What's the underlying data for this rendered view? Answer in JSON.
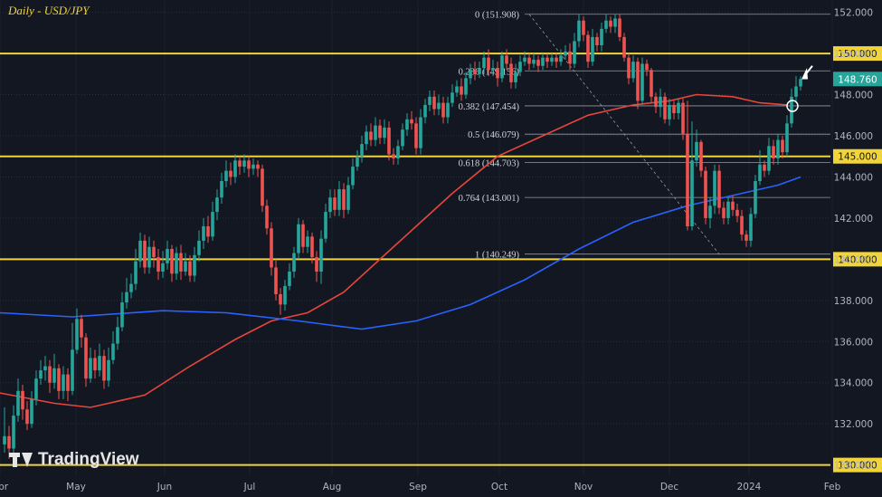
{
  "title": "Daily - USD/JPY",
  "brand": "TradingView",
  "chart_data": {
    "type": "candlestick",
    "y_axis": {
      "min": 129.5,
      "max": 152.6,
      "ticks": [
        130.0,
        132.0,
        134.0,
        136.0,
        138.0,
        140.0,
        142.0,
        144.0,
        146.0,
        148.0,
        150.0,
        152.0
      ]
    },
    "x_axis": {
      "labels": [
        "Apr",
        "May",
        "Jun",
        "Jul",
        "Aug",
        "Sep",
        "Oct",
        "Nov",
        "Dec",
        "2024",
        "Feb"
      ]
    },
    "current_price": 148.76,
    "current_price_label": "148.760",
    "horizontal_levels": [
      {
        "price": 150.0,
        "label": "150.000",
        "color": "#f0d43a"
      },
      {
        "price": 145.0,
        "label": "145.000",
        "color": "#f0d43a"
      },
      {
        "price": 140.0,
        "label": "140.000",
        "color": "#f0d43a"
      },
      {
        "price": 130.0,
        "label": "130.000",
        "color": "#f0d43a"
      }
    ],
    "fibonacci": [
      {
        "label": "0 (151.908)",
        "price": 151.908
      },
      {
        "label": "0.236 (149.156)",
        "price": 149.156
      },
      {
        "label": "0.382 (147.454)",
        "price": 147.454
      },
      {
        "label": "0.5 (146.079)",
        "price": 146.079
      },
      {
        "label": "0.618 (144.703)",
        "price": 144.703
      },
      {
        "label": "0.764 (143.001)",
        "price": 143.001
      },
      {
        "label": "1 (140.249)",
        "price": 140.249
      }
    ],
    "series": [
      {
        "name": "moving-average-red",
        "color": "#e8453c",
        "points": [
          [
            0,
            133.5
          ],
          [
            60,
            133.0
          ],
          [
            100,
            132.8
          ],
          [
            160,
            133.4
          ],
          [
            210,
            134.8
          ],
          [
            260,
            136.1
          ],
          [
            300,
            137.0
          ],
          [
            340,
            137.4
          ],
          [
            380,
            138.4
          ],
          [
            420,
            140.0
          ],
          [
            460,
            141.6
          ],
          [
            500,
            143.2
          ],
          [
            550,
            145.0
          ],
          [
            600,
            146.0
          ],
          [
            650,
            147.0
          ],
          [
            700,
            147.5
          ],
          [
            740,
            147.7
          ],
          [
            770,
            148.0
          ],
          [
            810,
            147.9
          ],
          [
            840,
            147.6
          ],
          [
            870,
            147.5
          ]
        ]
      },
      {
        "name": "moving-average-blue",
        "color": "#2962ff",
        "points": [
          [
            0,
            137.4
          ],
          [
            80,
            137.2
          ],
          [
            180,
            137.5
          ],
          [
            250,
            137.4
          ],
          [
            330,
            137.0
          ],
          [
            400,
            136.6
          ],
          [
            460,
            137.0
          ],
          [
            520,
            137.8
          ],
          [
            580,
            139.0
          ],
          [
            640,
            140.5
          ],
          [
            700,
            141.8
          ],
          [
            760,
            142.6
          ],
          [
            820,
            143.2
          ],
          [
            860,
            143.6
          ],
          [
            885,
            144.0
          ]
        ]
      }
    ],
    "candles": [
      [
        5,
        131.0,
        131.4,
        132.8,
        130.6
      ],
      [
        10,
        131.4,
        130.8,
        131.9,
        130.3
      ],
      [
        15,
        130.8,
        132.4,
        132.9,
        130.5
      ],
      [
        20,
        132.4,
        133.6,
        134.2,
        132.1
      ],
      [
        25,
        133.6,
        132.7,
        133.9,
        132.2
      ],
      [
        30,
        132.7,
        132.0,
        133.1,
        131.7
      ],
      [
        35,
        132.0,
        133.2,
        133.6,
        131.8
      ],
      [
        40,
        133.2,
        134.2,
        134.6,
        132.9
      ],
      [
        45,
        134.2,
        134.6,
        135.1,
        133.9
      ],
      [
        50,
        134.6,
        134.8,
        135.3,
        134.1
      ],
      [
        55,
        134.8,
        134.0,
        135.1,
        133.5
      ],
      [
        60,
        134.0,
        134.7,
        135.4,
        133.7
      ],
      [
        65,
        134.7,
        133.6,
        134.9,
        133.2
      ],
      [
        70,
        133.6,
        134.4,
        134.8,
        133.2
      ],
      [
        75,
        134.4,
        133.6,
        134.7,
        133.1
      ],
      [
        80,
        133.6,
        135.6,
        136.9,
        133.4
      ],
      [
        85,
        135.6,
        137.1,
        137.6,
        135.4
      ],
      [
        90,
        137.1,
        136.2,
        137.3,
        135.7
      ],
      [
        95,
        136.2,
        134.2,
        136.4,
        133.8
      ],
      [
        100,
        134.2,
        135.2,
        135.7,
        134.0
      ],
      [
        105,
        135.2,
        134.6,
        135.6,
        134.2
      ],
      [
        110,
        134.6,
        135.3,
        135.9,
        134.3
      ],
      [
        115,
        135.3,
        134.1,
        135.6,
        133.7
      ],
      [
        120,
        134.1,
        135.1,
        135.7,
        133.8
      ],
      [
        125,
        135.1,
        135.9,
        136.5,
        134.9
      ],
      [
        130,
        135.9,
        136.7,
        137.2,
        135.6
      ],
      [
        135,
        136.7,
        137.9,
        138.4,
        136.5
      ],
      [
        140,
        137.9,
        138.4,
        139.1,
        137.6
      ],
      [
        145,
        138.4,
        138.8,
        139.3,
        138.1
      ],
      [
        150,
        138.8,
        139.9,
        140.5,
        138.5
      ],
      [
        155,
        139.9,
        140.9,
        141.3,
        139.6
      ],
      [
        160,
        140.9,
        139.6,
        141.2,
        139.3
      ],
      [
        165,
        139.6,
        140.6,
        141.1,
        139.3
      ],
      [
        170,
        140.6,
        140.1,
        140.9,
        139.6
      ],
      [
        175,
        140.1,
        139.4,
        140.5,
        139.0
      ],
      [
        180,
        139.4,
        139.8,
        140.4,
        139.1
      ],
      [
        185,
        139.8,
        140.5,
        140.9,
        139.5
      ],
      [
        190,
        140.5,
        139.3,
        140.7,
        138.9
      ],
      [
        195,
        139.3,
        140.3,
        140.6,
        139.0
      ],
      [
        200,
        140.3,
        139.4,
        140.7,
        139.0
      ],
      [
        205,
        139.4,
        139.9,
        140.3,
        139.2
      ],
      [
        210,
        139.9,
        139.2,
        140.2,
        138.9
      ],
      [
        215,
        139.2,
        140.2,
        140.6,
        138.9
      ],
      [
        220,
        140.2,
        140.9,
        141.4,
        139.9
      ],
      [
        225,
        140.9,
        141.6,
        142.0,
        140.5
      ],
      [
        230,
        141.6,
        141.1,
        142.1,
        140.8
      ],
      [
        235,
        141.1,
        142.3,
        142.8,
        140.9
      ],
      [
        240,
        142.3,
        143.0,
        143.4,
        141.9
      ],
      [
        245,
        143.0,
        143.8,
        144.2,
        142.7
      ],
      [
        250,
        143.8,
        144.3,
        144.8,
        143.5
      ],
      [
        255,
        144.3,
        144.0,
        144.7,
        143.6
      ],
      [
        260,
        144.0,
        144.8,
        145.1,
        143.7
      ],
      [
        265,
        144.8,
        144.5,
        145.0,
        144.1
      ],
      [
        270,
        144.5,
        144.8,
        145.1,
        144.2
      ],
      [
        275,
        144.8,
        144.4,
        145.0,
        144.0
      ],
      [
        280,
        144.4,
        144.6,
        144.9,
        144.1
      ],
      [
        285,
        144.6,
        144.4,
        144.8,
        144.0
      ],
      [
        290,
        144.4,
        142.6,
        144.6,
        142.3
      ],
      [
        295,
        142.6,
        141.5,
        142.9,
        141.2
      ],
      [
        300,
        141.5,
        139.6,
        141.8,
        139.2
      ],
      [
        305,
        139.6,
        138.3,
        140.0,
        138.0
      ],
      [
        310,
        138.3,
        137.8,
        138.6,
        137.3
      ],
      [
        315,
        137.8,
        138.7,
        139.0,
        137.5
      ],
      [
        320,
        138.7,
        139.4,
        139.8,
        138.5
      ],
      [
        325,
        139.4,
        140.3,
        140.6,
        139.1
      ],
      [
        330,
        140.3,
        141.7,
        142.0,
        140.0
      ],
      [
        335,
        141.7,
        140.6,
        141.9,
        140.3
      ],
      [
        340,
        140.6,
        141.1,
        141.4,
        140.3
      ],
      [
        345,
        141.1,
        140.1,
        141.3,
        139.8
      ],
      [
        350,
        140.1,
        139.4,
        140.4,
        138.9
      ],
      [
        355,
        139.4,
        141.0,
        141.4,
        138.8
      ],
      [
        360,
        141.0,
        142.3,
        142.7,
        140.8
      ],
      [
        365,
        142.3,
        143.0,
        143.4,
        142.0
      ],
      [
        370,
        143.0,
        142.4,
        143.4,
        142.1
      ],
      [
        375,
        142.4,
        143.4,
        143.8,
        142.1
      ],
      [
        380,
        143.4,
        142.4,
        143.7,
        142.0
      ],
      [
        385,
        142.4,
        143.6,
        144.0,
        142.2
      ],
      [
        390,
        143.6,
        144.5,
        144.9,
        143.4
      ],
      [
        395,
        144.5,
        145.0,
        145.3,
        144.3
      ],
      [
        400,
        145.0,
        145.6,
        146.0,
        144.7
      ],
      [
        405,
        145.6,
        146.2,
        146.5,
        145.3
      ],
      [
        410,
        146.2,
        145.8,
        146.6,
        145.5
      ],
      [
        415,
        145.8,
        146.5,
        146.9,
        145.5
      ],
      [
        420,
        146.5,
        145.9,
        146.8,
        145.6
      ],
      [
        425,
        145.9,
        146.4,
        146.8,
        145.6
      ],
      [
        430,
        146.4,
        145.1,
        146.7,
        144.8
      ],
      [
        435,
        145.1,
        144.9,
        145.4,
        144.6
      ],
      [
        440,
        144.9,
        145.5,
        145.8,
        144.6
      ],
      [
        445,
        145.5,
        146.3,
        146.6,
        145.3
      ],
      [
        450,
        146.3,
        146.8,
        147.1,
        146.0
      ],
      [
        455,
        146.8,
        146.6,
        147.2,
        146.3
      ],
      [
        460,
        146.6,
        145.4,
        146.9,
        145.1
      ],
      [
        465,
        145.4,
        146.9,
        147.3,
        145.1
      ],
      [
        470,
        146.9,
        147.5,
        147.8,
        146.6
      ],
      [
        475,
        147.5,
        147.9,
        148.2,
        147.2
      ],
      [
        480,
        147.9,
        147.3,
        148.2,
        147.0
      ],
      [
        485,
        147.3,
        147.6,
        148.0,
        147.0
      ],
      [
        490,
        147.6,
        146.9,
        147.9,
        146.6
      ],
      [
        495,
        146.9,
        147.6,
        147.9,
        146.6
      ],
      [
        500,
        147.6,
        148.1,
        148.5,
        147.4
      ],
      [
        505,
        148.1,
        148.4,
        148.7,
        147.9
      ],
      [
        510,
        148.4,
        148.0,
        148.8,
        147.7
      ],
      [
        515,
        148.0,
        148.8,
        149.1,
        147.8
      ],
      [
        520,
        148.8,
        149.2,
        149.5,
        148.5
      ],
      [
        525,
        149.2,
        149.0,
        149.6,
        148.7
      ],
      [
        530,
        149.0,
        149.3,
        149.6,
        148.8
      ],
      [
        535,
        149.3,
        149.8,
        150.1,
        149.0
      ],
      [
        540,
        149.8,
        149.2,
        150.2,
        148.9
      ],
      [
        545,
        149.2,
        149.3,
        149.7,
        148.9
      ],
      [
        550,
        149.3,
        148.8,
        149.6,
        148.4
      ],
      [
        555,
        148.8,
        149.9,
        150.1,
        148.6
      ],
      [
        560,
        149.9,
        149.5,
        150.2,
        149.2
      ],
      [
        565,
        149.5,
        148.6,
        149.8,
        148.3
      ],
      [
        570,
        148.6,
        149.1,
        149.5,
        148.3
      ],
      [
        575,
        149.1,
        149.6,
        149.9,
        148.9
      ],
      [
        580,
        149.6,
        149.8,
        150.1,
        149.4
      ],
      [
        585,
        149.8,
        149.5,
        150.0,
        149.2
      ],
      [
        590,
        149.5,
        149.7,
        150.0,
        149.3
      ],
      [
        595,
        149.7,
        149.4,
        149.9,
        149.1
      ],
      [
        600,
        149.4,
        149.8,
        150.0,
        149.2
      ],
      [
        605,
        149.8,
        149.6,
        150.0,
        149.3
      ],
      [
        610,
        149.6,
        149.8,
        150.0,
        149.4
      ],
      [
        615,
        149.8,
        149.6,
        150.0,
        149.3
      ],
      [
        620,
        149.6,
        149.9,
        150.2,
        149.4
      ],
      [
        625,
        149.9,
        150.1,
        150.4,
        149.7
      ],
      [
        630,
        150.1,
        149.5,
        150.5,
        149.2
      ],
      [
        635,
        149.5,
        150.6,
        151.0,
        149.3
      ],
      [
        640,
        150.6,
        151.6,
        151.9,
        150.3
      ],
      [
        645,
        151.6,
        150.9,
        151.8,
        150.6
      ],
      [
        650,
        150.9,
        149.6,
        151.1,
        149.3
      ],
      [
        655,
        149.6,
        150.8,
        151.2,
        149.4
      ],
      [
        660,
        150.8,
        150.4,
        151.0,
        150.1
      ],
      [
        665,
        150.4,
        151.2,
        151.5,
        150.1
      ],
      [
        670,
        151.2,
        151.6,
        151.9,
        151.0
      ],
      [
        675,
        151.6,
        151.3,
        151.8,
        151.0
      ],
      [
        680,
        151.3,
        151.7,
        151.9,
        151.0
      ],
      [
        685,
        151.7,
        150.8,
        151.9,
        150.6
      ],
      [
        690,
        150.8,
        149.8,
        151.0,
        149.6
      ],
      [
        695,
        149.8,
        148.8,
        150.0,
        148.5
      ],
      [
        700,
        148.8,
        149.6,
        149.9,
        148.6
      ],
      [
        705,
        149.6,
        147.7,
        149.8,
        147.3
      ],
      [
        710,
        147.7,
        149.5,
        149.8,
        147.5
      ],
      [
        715,
        149.5,
        149.2,
        149.7,
        148.9
      ],
      [
        720,
        149.2,
        147.9,
        149.3,
        147.6
      ],
      [
        725,
        147.9,
        147.4,
        148.1,
        147.1
      ],
      [
        730,
        147.4,
        147.9,
        148.3,
        146.9
      ],
      [
        735,
        147.9,
        146.8,
        148.1,
        146.6
      ],
      [
        740,
        146.8,
        147.5,
        147.8,
        146.5
      ],
      [
        745,
        147.5,
        147.1,
        147.7,
        146.8
      ],
      [
        750,
        147.1,
        147.6,
        147.8,
        146.8
      ],
      [
        755,
        147.6,
        146.1,
        147.8,
        145.8
      ],
      [
        760,
        146.1,
        141.6,
        147.7,
        141.4
      ],
      [
        765,
        141.6,
        144.8,
        146.7,
        141.4
      ],
      [
        770,
        144.8,
        145.7,
        146.3,
        144.5
      ],
      [
        775,
        145.7,
        144.3,
        145.8,
        144.0
      ],
      [
        780,
        144.3,
        142.0,
        144.5,
        141.7
      ],
      [
        785,
        142.0,
        142.6,
        143.0,
        141.5
      ],
      [
        790,
        142.6,
        144.3,
        144.6,
        142.2
      ],
      [
        795,
        144.3,
        142.5,
        144.6,
        142.2
      ],
      [
        800,
        142.5,
        142.0,
        142.8,
        141.7
      ],
      [
        805,
        142.0,
        142.8,
        143.0,
        141.7
      ],
      [
        810,
        142.8,
        142.4,
        143.1,
        142.1
      ],
      [
        815,
        142.4,
        142.1,
        142.7,
        141.8
      ],
      [
        820,
        142.1,
        141.2,
        142.4,
        140.9
      ],
      [
        825,
        141.2,
        140.9,
        141.4,
        140.6
      ],
      [
        830,
        140.9,
        142.2,
        142.5,
        140.6
      ],
      [
        835,
        142.2,
        143.8,
        144.1,
        142.0
      ],
      [
        840,
        143.8,
        144.6,
        145.3,
        143.6
      ],
      [
        845,
        144.6,
        144.3,
        144.8,
        144.0
      ],
      [
        850,
        144.3,
        145.5,
        145.9,
        144.1
      ],
      [
        855,
        145.5,
        144.9,
        145.8,
        144.6
      ],
      [
        860,
        144.9,
        145.8,
        146.1,
        144.6
      ],
      [
        865,
        145.8,
        145.2,
        146.0,
        144.9
      ],
      [
        870,
        145.2,
        146.6,
        147.0,
        145.0
      ],
      [
        875,
        146.6,
        147.9,
        148.3,
        146.4
      ],
      [
        880,
        147.9,
        148.4,
        148.9,
        147.6
      ],
      [
        885,
        148.4,
        148.76,
        148.9,
        148.2
      ]
    ]
  }
}
